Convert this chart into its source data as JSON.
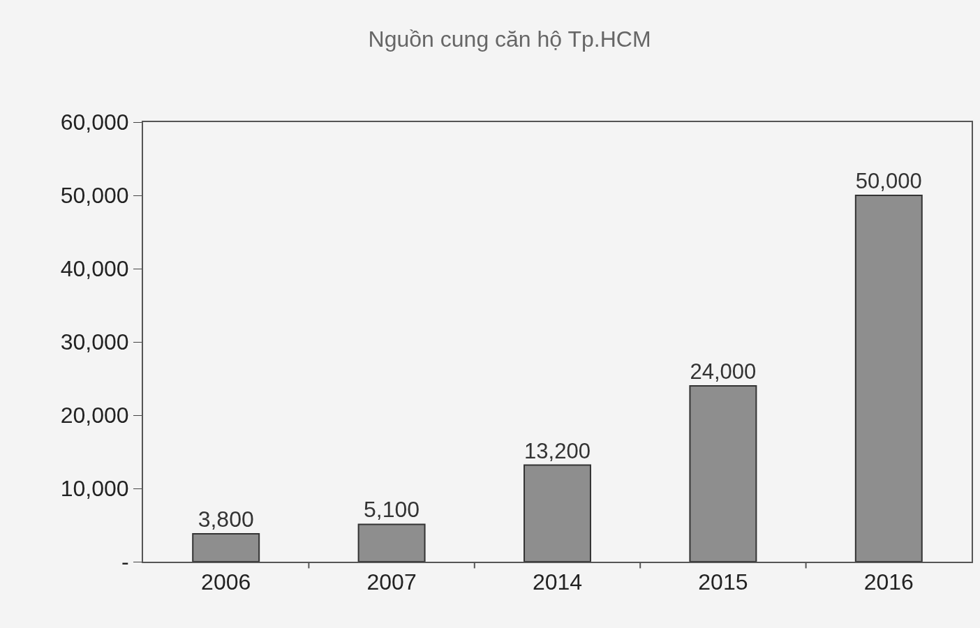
{
  "chart_data": {
    "type": "bar",
    "title": "Nguồn cung căn hộ Tp.HCM",
    "categories": [
      "2006",
      "2007",
      "2014",
      "2015",
      "2016"
    ],
    "values": [
      3800,
      5100,
      13200,
      24000,
      50000
    ],
    "value_labels": [
      "3,800",
      "5,100",
      "13,200",
      "24,000",
      "50,000"
    ],
    "color": "#8e8e8e",
    "ylim": [
      0,
      60000
    ],
    "yticks": [
      {
        "value": 0,
        "label": "-"
      },
      {
        "value": 10000,
        "label": "10,000"
      },
      {
        "value": 20000,
        "label": "20,000"
      },
      {
        "value": 30000,
        "label": "30,000"
      },
      {
        "value": 40000,
        "label": "40,000"
      },
      {
        "value": 50000,
        "label": "50,000"
      },
      {
        "value": 60000,
        "label": "60,000"
      }
    ],
    "grid": false
  }
}
